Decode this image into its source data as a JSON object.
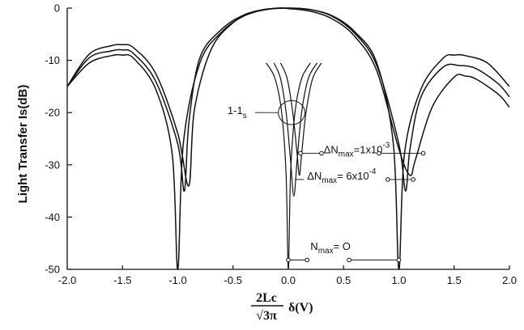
{
  "chart_data": {
    "type": "line",
    "xlabel": "2Lc/√3π δ(V)",
    "xlabel_numerator": "2Lc",
    "xlabel_denominator": "√3π",
    "xlabel_suffix": "δ(V)",
    "ylabel": "Light Transfer Is(dB)",
    "xlim": [
      -2.0,
      2.0
    ],
    "ylim": [
      -50,
      0
    ],
    "xticks": [
      "-2.0",
      "-1.5",
      "-1.0",
      "-0.5",
      "0.0",
      "0.5",
      "1.0",
      "1.5",
      "2.0"
    ],
    "yticks": [
      "0",
      "-10",
      "-20",
      "-30",
      "-40",
      "-50"
    ],
    "grid": false,
    "series": [
      {
        "name": "Nmax=0",
        "kind": "Is",
        "x": [
          -2.0,
          -1.8,
          -1.6,
          -1.5,
          -1.4,
          -1.2,
          -1.05,
          -1.0,
          -0.95,
          -0.8,
          -0.6,
          -0.4,
          -0.2,
          0.0,
          0.2,
          0.4,
          0.6,
          0.8,
          0.95,
          1.0,
          1.05,
          1.2,
          1.4,
          1.5,
          1.6,
          1.8,
          2.0
        ],
        "y": [
          -15.0,
          -10.5,
          -9.1,
          -9.0,
          -9.6,
          -15.5,
          -28.0,
          -50.0,
          -26.0,
          -10.5,
          -4.5,
          -1.5,
          -0.3,
          0.0,
          -0.3,
          -1.5,
          -4.5,
          -10.5,
          -26.0,
          -50.0,
          -28.0,
          -15.5,
          -9.6,
          -9.0,
          -9.1,
          -10.5,
          -15.0
        ]
      },
      {
        "name": "ΔNmax=6x10^-4",
        "kind": "Is",
        "x": [
          -2.0,
          -1.8,
          -1.6,
          -1.5,
          -1.4,
          -1.2,
          -1.0,
          -0.94,
          -0.9,
          -0.8,
          -0.6,
          -0.4,
          -0.2,
          0.0,
          0.2,
          0.4,
          0.6,
          0.8,
          1.0,
          1.06,
          1.1,
          1.2,
          1.4,
          1.55,
          1.7,
          1.9,
          2.0
        ],
        "y": [
          -15.0,
          -9.5,
          -8.2,
          -8.0,
          -8.7,
          -14.0,
          -26.0,
          -35.0,
          -22.0,
          -9.5,
          -4.0,
          -1.3,
          -0.2,
          0.0,
          -0.3,
          -1.6,
          -4.8,
          -11.0,
          -26.0,
          -35.0,
          -27.0,
          -17.0,
          -11.3,
          -11.0,
          -11.6,
          -14.5,
          -17.0
        ]
      },
      {
        "name": "ΔNmax=1x10^-3",
        "kind": "Is",
        "x": [
          -2.0,
          -1.8,
          -1.6,
          -1.5,
          -1.4,
          -1.2,
          -1.0,
          -0.9,
          -0.85,
          -0.7,
          -0.5,
          -0.3,
          -0.1,
          0.0,
          0.2,
          0.4,
          0.6,
          0.8,
          1.0,
          1.1,
          1.15,
          1.3,
          1.5,
          1.6,
          1.7,
          1.9,
          2.0
        ],
        "y": [
          -15.0,
          -8.8,
          -7.2,
          -7.0,
          -7.6,
          -12.5,
          -24.0,
          -34.0,
          -19.5,
          -8.0,
          -2.8,
          -0.7,
          0.0,
          -0.1,
          -0.6,
          -2.1,
          -5.4,
          -12.0,
          -27.0,
          -32.0,
          -29.0,
          -19.0,
          -13.2,
          -13.0,
          -13.6,
          -16.5,
          -19.0
        ]
      },
      {
        "name": "Nmax=0 (1-Is)",
        "kind": "1-Is",
        "x": [
          -0.2,
          -0.12,
          -0.06,
          -0.02,
          0.0,
          0.02,
          0.06,
          0.12,
          0.2
        ],
        "y": [
          -10.5,
          -13.5,
          -20.0,
          -32.0,
          -50.0,
          -32.0,
          -20.0,
          -13.5,
          -10.5
        ]
      },
      {
        "name": "ΔNmax=6x10^-4 (1-Is)",
        "kind": "1-Is",
        "x": [
          -0.13,
          -0.07,
          -0.02,
          0.02,
          0.05,
          0.08,
          0.12,
          0.18,
          0.26
        ],
        "y": [
          -10.5,
          -13.5,
          -20.0,
          -29.0,
          -36.0,
          -29.0,
          -20.0,
          -13.5,
          -10.5
        ]
      },
      {
        "name": "ΔNmax=1x10^-3 (1-Is)",
        "kind": "1-Is",
        "x": [
          -0.07,
          -0.01,
          0.04,
          0.08,
          0.1,
          0.12,
          0.16,
          0.22,
          0.3
        ],
        "y": [
          -10.5,
          -13.5,
          -20.0,
          -28.0,
          -32.0,
          -28.0,
          -20.0,
          -13.5,
          -10.5
        ]
      }
    ],
    "annotations": [
      {
        "id": "one-minus-is",
        "text_main": "1-1",
        "text_sub": "s",
        "x": -0.55,
        "y": -20.3
      },
      {
        "id": "dn1e3",
        "prefix": "ΔN",
        "sub": "max",
        "mid": "=1x10",
        "sup": "-3",
        "x": 0.32,
        "y": -27.8
      },
      {
        "id": "dn6e4",
        "prefix": "ΔN",
        "sub": "max",
        "mid": "= 6x10",
        "sup": "-4",
        "x": 0.17,
        "y": -32.8
      },
      {
        "id": "nmax0",
        "prefix": "N",
        "sub": "max",
        "mid": "= O",
        "sup": "",
        "x": 0.2,
        "y": -46.3
      }
    ],
    "leaders": [
      {
        "from": [
          0.11,
          -27.8
        ],
        "to": [
          0.3,
          -27.8
        ],
        "dot": true
      },
      {
        "from": [
          0.82,
          -27.8
        ],
        "to": [
          1.22,
          -27.8
        ],
        "dot": true
      },
      {
        "from": [
          0.06,
          -32.8
        ],
        "to": [
          0.14,
          -32.8
        ],
        "dot": false
      },
      {
        "from": [
          0.9,
          -32.8
        ],
        "to": [
          1.13,
          -32.8
        ],
        "dot": true
      },
      {
        "from": [
          0.0,
          -48.2
        ],
        "to": [
          0.17,
          -48.2
        ],
        "dot": true
      },
      {
        "from": [
          0.55,
          -48.2
        ],
        "to": [
          1.0,
          -48.2
        ],
        "dot": true
      }
    ],
    "ellipse": {
      "cx": 0.03,
      "cy": -20.0,
      "rx": 0.12,
      "ry": 2.3
    },
    "ellipse_leader": {
      "from": [
        -0.3,
        -20.0
      ],
      "to": [
        -0.09,
        -20.0
      ]
    }
  }
}
